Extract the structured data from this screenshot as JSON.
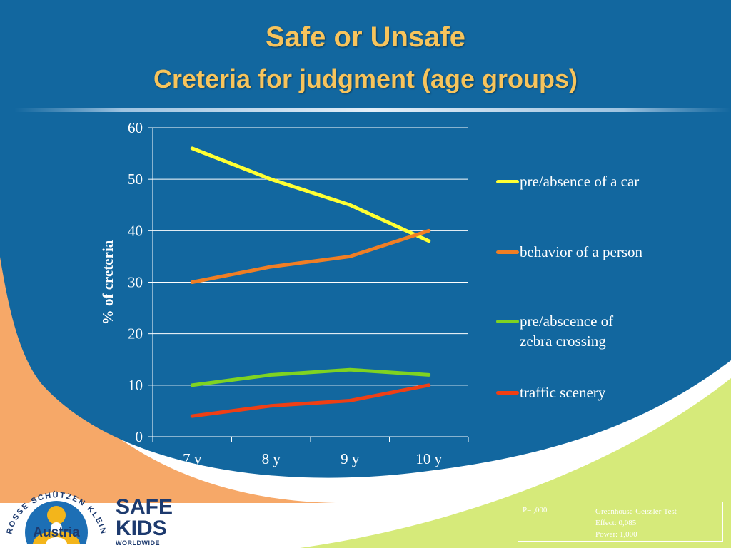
{
  "slide": {
    "title": "Safe or Unsafe",
    "subtitle": "Creteria for judgment (age groups)"
  },
  "colors": {
    "background": "#12679f",
    "title": "#f7c45c",
    "orange_swoosh": "#f6a868",
    "green_swoosh": "#d6ea7a"
  },
  "chart_data": {
    "type": "line",
    "categories": [
      "7 y",
      "8 y",
      "9 y",
      "10 y"
    ],
    "ylabel": "% of creteria",
    "xlabel": "",
    "ylim": [
      0,
      60
    ],
    "yticks": [
      0,
      10,
      20,
      30,
      40,
      50,
      60
    ],
    "grid": true,
    "legend_position": "right",
    "series": [
      {
        "name": "pre/absence of a car",
        "color": "#ffff33",
        "values": [
          56,
          50,
          45,
          38
        ]
      },
      {
        "name": "behavior of a person",
        "color": "#f07e24",
        "values": [
          30,
          33,
          35,
          40
        ]
      },
      {
        "name": "pre/abscence of\nzebra crossing",
        "color": "#7fd321",
        "values": [
          10,
          12,
          13,
          12
        ]
      },
      {
        "name": "traffic scenery",
        "color": "#ef3f14",
        "values": [
          4,
          6,
          7,
          10
        ]
      }
    ]
  },
  "stats": {
    "p": "P= ,000",
    "test": "Greenhouse-Geissler-Test",
    "effect": "Effect: 0,085",
    "power": "Power: 1,000"
  },
  "logos": {
    "gsk_ring_text": "GROSSE SCHÜTZEN KLEINE",
    "gsk_country": "Austria",
    "safekids_line1": "SAFE",
    "safekids_line2": "KIDS",
    "safekids_line3": "WORLDWIDE"
  }
}
